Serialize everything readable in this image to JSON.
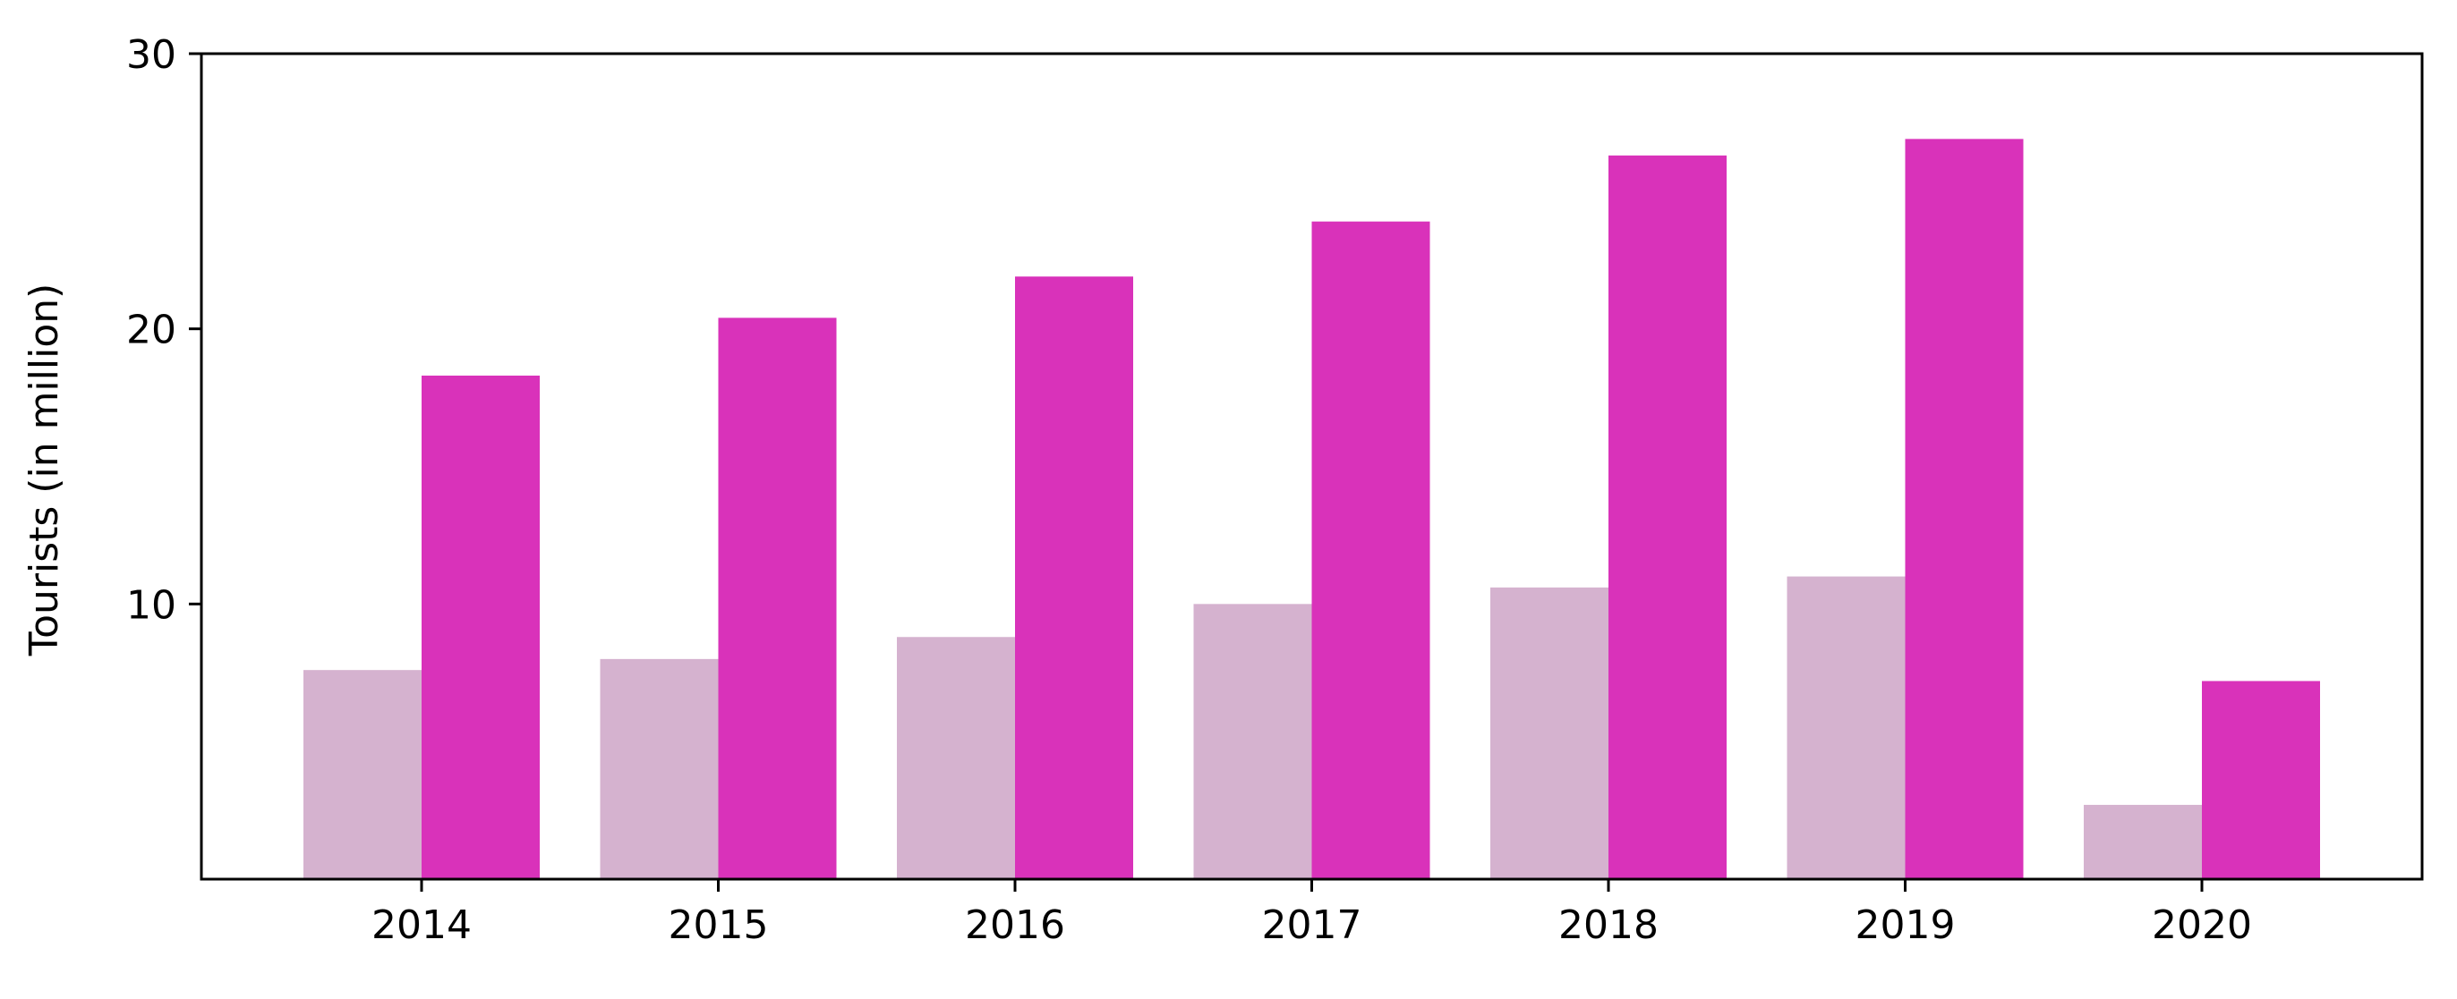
{
  "chart_data": {
    "type": "bar",
    "title": "",
    "xlabel": "",
    "ylabel": "Tourists (in million)",
    "categories": [
      "2014",
      "2015",
      "2016",
      "2017",
      "2018",
      "2019",
      "2020"
    ],
    "series": [
      {
        "color": "#d5b2cf",
        "values": [
          7.6,
          8.0,
          8.8,
          10.0,
          10.6,
          11.0,
          2.7
        ]
      },
      {
        "color": "#d932ba",
        "values": [
          18.3,
          20.4,
          21.9,
          23.9,
          26.3,
          26.9,
          7.2
        ]
      }
    ],
    "ylim": [
      0,
      30
    ],
    "yticks": [
      10,
      20,
      30
    ],
    "ytick_labels": [
      "10",
      "20",
      "30"
    ],
    "grid": false,
    "legend": "none"
  }
}
